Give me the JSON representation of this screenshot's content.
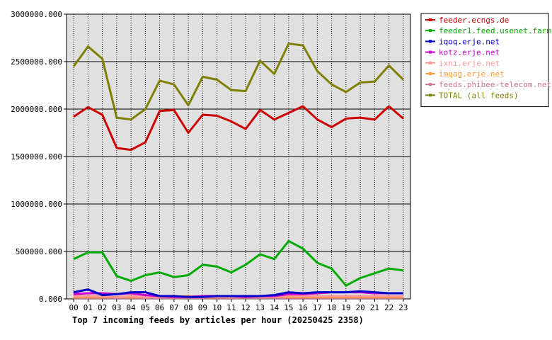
{
  "chart_data": {
    "type": "line",
    "title": "Top 7 incoming feeds by articles per hour (20250425 2358)",
    "xlabel": "",
    "ylabel": "",
    "grid": true,
    "legend_placement": "right",
    "ylim": [
      0,
      3000000
    ],
    "y_ticks": [
      "0.000",
      "500000.000",
      "1000000.000",
      "1500000.000",
      "2000000.000",
      "2500000.000",
      "3000000.000"
    ],
    "categories": [
      "00",
      "01",
      "02",
      "03",
      "04",
      "05",
      "06",
      "07",
      "08",
      "09",
      "10",
      "11",
      "12",
      "13",
      "14",
      "15",
      "16",
      "17",
      "18",
      "19",
      "20",
      "21",
      "22",
      "23"
    ],
    "series": [
      {
        "name": "feeder.ecngs.de",
        "color": "#cc0000",
        "values": [
          1920000,
          2020000,
          1940000,
          1590000,
          1570000,
          1650000,
          1980000,
          1990000,
          1750000,
          1940000,
          1930000,
          1870000,
          1790000,
          1990000,
          1890000,
          1960000,
          2030000,
          1890000,
          1810000,
          1900000,
          1910000,
          1890000,
          2030000,
          1900000
        ]
      },
      {
        "name": "feeder1.feed.usenet.farm",
        "color": "#00aa00",
        "values": [
          420000,
          490000,
          490000,
          240000,
          190000,
          250000,
          280000,
          230000,
          250000,
          360000,
          340000,
          280000,
          360000,
          470000,
          420000,
          610000,
          530000,
          380000,
          320000,
          140000,
          220000,
          270000,
          320000,
          300000
        ]
      },
      {
        "name": "iqoq.erje.net",
        "color": "#0000cc",
        "values": [
          70000,
          100000,
          40000,
          50000,
          70000,
          70000,
          30000,
          30000,
          20000,
          20000,
          30000,
          30000,
          30000,
          30000,
          40000,
          70000,
          60000,
          70000,
          70000,
          70000,
          80000,
          70000,
          60000,
          60000
        ]
      },
      {
        "name": "kotz.erje.net",
        "color": "#cc00cc",
        "values": [
          50000,
          60000,
          60000,
          50000,
          60000,
          40000,
          30000,
          20000,
          20000,
          30000,
          30000,
          30000,
          20000,
          30000,
          30000,
          50000,
          50000,
          60000,
          70000,
          70000,
          70000,
          60000,
          60000,
          60000
        ]
      },
      {
        "name": "ixni.erje.net",
        "color": "#ff9999",
        "values": [
          30000,
          30000,
          30000,
          20000,
          30000,
          20000,
          20000,
          20000,
          20000,
          20000,
          20000,
          20000,
          20000,
          20000,
          20000,
          30000,
          30000,
          30000,
          30000,
          30000,
          30000,
          30000,
          30000,
          30000
        ]
      },
      {
        "name": "imqag.erje.net",
        "color": "#ff9933",
        "values": [
          20000,
          20000,
          20000,
          20000,
          20000,
          20000,
          20000,
          20000,
          30000,
          20000,
          20000,
          20000,
          20000,
          20000,
          20000,
          20000,
          20000,
          20000,
          20000,
          20000,
          20000,
          20000,
          20000,
          20000
        ]
      },
      {
        "name": "feeds.phibee-telecom.net",
        "color": "#cc7788",
        "values": [
          10000,
          10000,
          10000,
          10000,
          10000,
          10000,
          10000,
          10000,
          10000,
          10000,
          10000,
          10000,
          10000,
          10000,
          10000,
          10000,
          10000,
          10000,
          10000,
          10000,
          10000,
          10000,
          10000,
          10000
        ]
      },
      {
        "name": "TOTAL (all feeds)",
        "color": "#808000",
        "values": [
          2450000,
          2660000,
          2530000,
          1910000,
          1890000,
          2000000,
          2300000,
          2260000,
          2040000,
          2340000,
          2310000,
          2200000,
          2190000,
          2510000,
          2370000,
          2690000,
          2670000,
          2400000,
          2260000,
          2180000,
          2280000,
          2290000,
          2460000,
          2310000
        ]
      }
    ]
  }
}
